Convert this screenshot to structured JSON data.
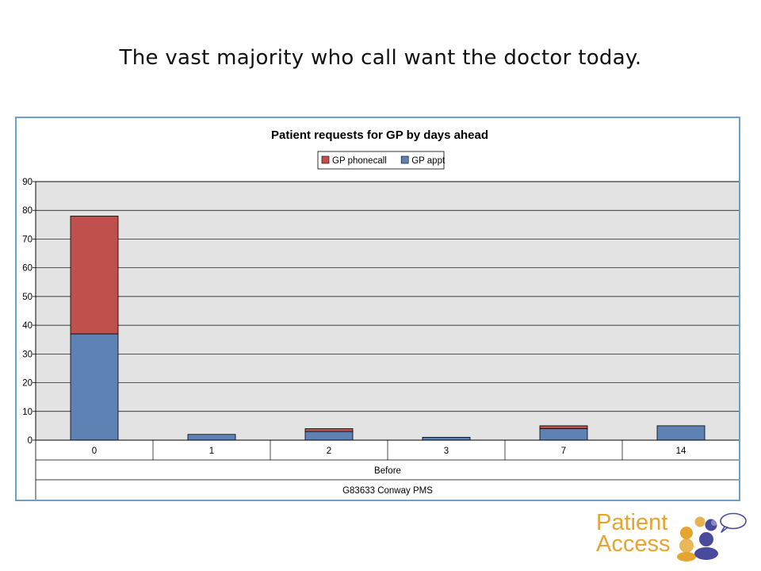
{
  "slide": {
    "title": "The vast majority who call want the doctor today."
  },
  "chart_data": {
    "type": "bar",
    "stacked": true,
    "title": "Patient requests for GP by days ahead",
    "categories": [
      "0",
      "1",
      "2",
      "3",
      "7",
      "14"
    ],
    "category_group_label": "Before",
    "footer_label": "G83633 Conway PMS",
    "ylim": [
      0,
      90
    ],
    "yticks": [
      0,
      10,
      20,
      30,
      40,
      50,
      60,
      70,
      80,
      90
    ],
    "grid": true,
    "legend_position": "top",
    "series": [
      {
        "name": "GP appt",
        "color": "#5f82b5",
        "values": [
          37,
          2,
          3,
          1,
          4,
          5
        ]
      },
      {
        "name": "GP phonecall",
        "color": "#c0504d",
        "values": [
          41,
          0,
          1,
          0,
          1,
          0
        ]
      }
    ],
    "legend_order": [
      "GP phonecall",
      "GP appt"
    ],
    "plot_background": "#e3e3e3"
  },
  "logo": {
    "line1": "Patient",
    "line2": "Access",
    "brand_color": "#e4a531",
    "accent_color": "#4a4a9c"
  }
}
